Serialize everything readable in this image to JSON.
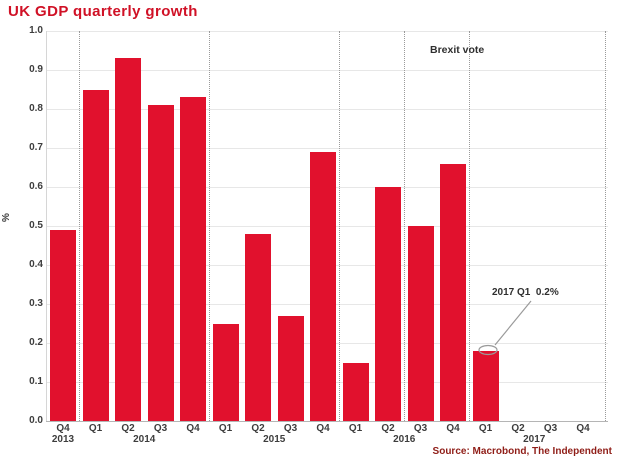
{
  "title": "UK GDP quarterly growth",
  "source": "Source: Macrobond, The Independent",
  "y_axis": {
    "title": "%"
  },
  "annotations": {
    "brexit": {
      "label": "Brexit vote"
    },
    "q1_2017": {
      "label": "2017 Q1  0.2%"
    }
  },
  "colors": {
    "bar": "#e1112d",
    "title": "#d01126",
    "source": "#8f1d17",
    "axis_text": "#3d3d3d",
    "annotation_text": "#2f2f2f",
    "gridline": "#e7e7e7",
    "axis_line": "#b5b5b5",
    "divider_dotted": "#9a9a9a"
  },
  "chart_data": {
    "type": "bar",
    "title": "UK GDP quarterly growth",
    "xlabel": "",
    "ylabel": "%",
    "ylim": [
      0.0,
      1.0
    ],
    "ytick_labels": [
      "0.0",
      "0.1",
      "0.2",
      "0.3",
      "0.4",
      "0.5",
      "0.6",
      "0.7",
      "0.8",
      "0.9",
      "1.0"
    ],
    "grid": "horizontal solid lines each 0.1; dotted vertical lines at year boundaries",
    "legend": "none",
    "categories": [
      "Q4 2013",
      "Q1 2014",
      "Q2 2014",
      "Q3 2014",
      "Q4 2014",
      "Q1 2015",
      "Q2 2015",
      "Q3 2015",
      "Q4 2015",
      "Q1 2016",
      "Q2 2016",
      "Q3 2016",
      "Q4 2016",
      "Q1 2017",
      "Q2 2017",
      "Q3 2017",
      "Q4 2017"
    ],
    "x_tick_labels": [
      "Q4",
      "Q1",
      "Q2",
      "Q3",
      "Q4",
      "Q1",
      "Q2",
      "Q3",
      "Q4",
      "Q1",
      "Q2",
      "Q3",
      "Q4",
      "Q1",
      "Q2",
      "Q3",
      "Q4"
    ],
    "values": [
      0.49,
      0.85,
      0.93,
      0.81,
      0.83,
      0.25,
      0.48,
      0.27,
      0.69,
      0.15,
      0.6,
      0.5,
      0.66,
      0.18,
      null,
      null,
      null
    ],
    "year_labels": [
      {
        "label": "2013",
        "slot": 0
      },
      {
        "label": "2014",
        "slot": 2.5
      },
      {
        "label": "2015",
        "slot": 6.5
      },
      {
        "label": "2016",
        "slot": 10.5
      },
      {
        "label": "2017",
        "slot": 14.5
      }
    ],
    "year_divider_slots": [
      0.5,
      4.5,
      8.5,
      12.5
    ],
    "brexit_line_slot": 10.5,
    "annotations": [
      {
        "text": "Brexit vote",
        "attached_to": "vertical dotted line between Q2 2016 and Q3 2016"
      },
      {
        "text": "2017 Q1  0.2%",
        "points_to": "Q1 2017",
        "value_label": "0.2%"
      }
    ]
  }
}
